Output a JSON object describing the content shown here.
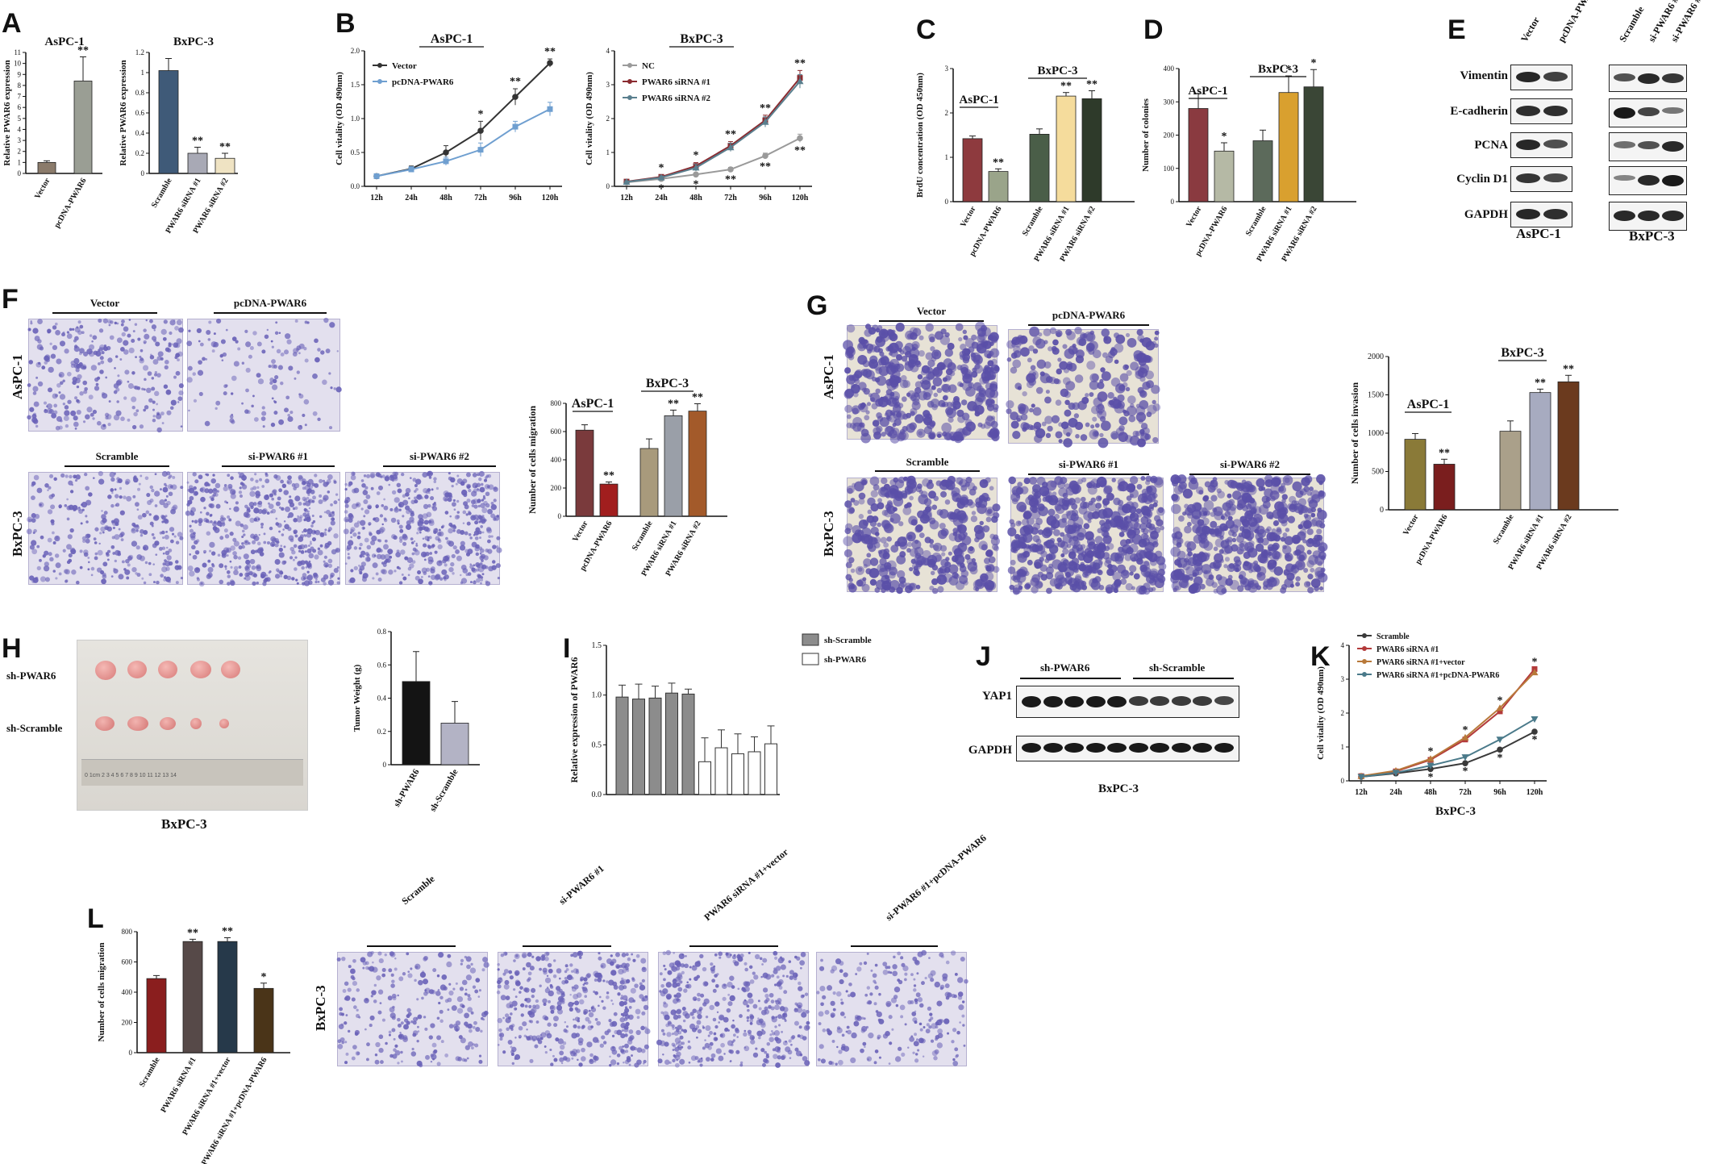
{
  "panel_letters": {
    "A": "A",
    "B": "B",
    "C": "C",
    "D": "D",
    "E": "E",
    "F": "F",
    "G": "G",
    "H": "H",
    "I": "I",
    "J": "J",
    "K": "K",
    "L": "L"
  },
  "colors": {
    "vector": "#8b7b6b",
    "pcdna": "#9a9e94",
    "scramble": "#3f5a78",
    "sirna1": "#a8a9b5",
    "sirna2": "#efe3c3",
    "c_vec": "#8e3a3e",
    "c_pc": "#9aa48a",
    "c_scr": "#4a5e48",
    "c_si1": "#f5dc9c",
    "c_si2": "#2e3a2a",
    "d_vec": "#8a3a40",
    "d_pc": "#b5b9a5",
    "d_scr": "#5c6a5b",
    "d_si1": "#d9a02f",
    "d_si2": "#3a4636",
    "f_vec": "#7a3a3c",
    "f_pc": "#a11e1e",
    "f_scr": "#a89a7c",
    "f_si1": "#9a9fa8",
    "f_si2": "#a35a2a",
    "g_vec": "#8a7a38",
    "g_pc": "#7a1e1e",
    "g_scr": "#aaa08a",
    "g_si1": "#a7abc0",
    "g_si2": "#6b3a1e",
    "stain": "#5a4fa8",
    "bg_photo": "#dcd8ea"
  },
  "texts": {
    "aspc1": "AsPC-1",
    "bxpc3": "BxPC-3",
    "a_ylabel": "Relative PWAR6 expression",
    "b_ylabel1": "Cell vitality (OD 490nm)",
    "b_ylabel2": "Cell vitality (OD 490nm)",
    "c_ylabel": "BrdU concentration (OD 450nm)",
    "d_ylabel": "Number of colonies",
    "f_ylabel": "Number of cells migration",
    "g_ylabel": "Number of cells invasion",
    "h_ylabel": "Tumor Weight (g)",
    "i_ylabel": "Relative expression of PWAR6",
    "k_ylabel": "Cell vitality (OD 490nm)",
    "l_ylabel": "Number of cells migration",
    "vector": "Vector",
    "pcdna": "pcDNA-PWAR6",
    "scramble": "Scramble",
    "nc": "NC",
    "sirna1": "PWAR6 siRNA #1",
    "sirna2": "PWAR6 siRNA #2",
    "si1": "si-PWAR6 #1",
    "si2": "si-PWAR6 #2",
    "sh_pwar6": "sh-PWAR6",
    "sh_scramble": "sh-Scramble",
    "sirna1_vector": "PWAR6 siRNA #1+vector",
    "sirna1_pcdna": "PWAR6 siRNA #1+pcDNA-PWAR6",
    "si1_pcdna": "si-PWAR6 #1+pcDNA-PWAR6",
    "sirna1_vector_l": "PWAR6 siRNA #1+vector",
    "wb_vimentin": "Vimentin",
    "wb_ecad": "E-cadherin",
    "wb_pcna": "PCNA",
    "wb_cyclin": "Cyclin D1",
    "wb_gapdh": "GAPDH",
    "yap1": "YAP1",
    "gapdh": "GAPDH",
    "ruler": "0  1cm  2  3  4  5  6  7  8  9  10  11  12  13  14"
  },
  "chart_data": [
    {
      "id": "A1",
      "type": "bar",
      "title": "AsPC-1",
      "ylabel": "Relative PWAR6 expression",
      "categories": [
        "Vector",
        "pcDNA-PWAR6"
      ],
      "values": [
        1.0,
        8.4
      ],
      "errors": [
        0.15,
        2.2
      ],
      "ylim": [
        0,
        11
      ],
      "yticks": [
        0,
        1,
        2,
        3,
        4,
        5,
        6,
        7,
        8,
        9,
        10,
        11
      ],
      "sig": [
        "",
        "**"
      ]
    },
    {
      "id": "A2",
      "type": "bar",
      "title": "BxPC-3",
      "ylabel": "Relative PWAR6 expression",
      "categories": [
        "Scramble",
        "PWAR6 siRNA #1",
        "PWAR6 siRNA #2"
      ],
      "values": [
        1.02,
        0.2,
        0.15
      ],
      "errors": [
        0.12,
        0.06,
        0.05
      ],
      "ylim": [
        0,
        1.2
      ],
      "yticks": [
        0,
        0.2,
        0.4,
        0.6,
        0.8,
        1.0,
        1.2
      ],
      "sig": [
        "",
        "**",
        "**"
      ]
    },
    {
      "id": "B1",
      "type": "line",
      "title": "AsPC-1",
      "ylabel": "Cell vitality (OD 490nm)",
      "x": [
        "12h",
        "24h",
        "48h",
        "72h",
        "96h",
        "120h"
      ],
      "ylim": [
        0,
        2.0
      ],
      "yticks": [
        0,
        0.5,
        1.0,
        1.5,
        2.0
      ],
      "series": [
        {
          "name": "Vector",
          "values": [
            0.15,
            0.26,
            0.5,
            0.82,
            1.32,
            1.82
          ],
          "errors": [
            0.03,
            0.04,
            0.1,
            0.14,
            0.12,
            0.06
          ]
        },
        {
          "name": "pcDNA-PWAR6",
          "values": [
            0.15,
            0.25,
            0.37,
            0.54,
            0.88,
            1.14
          ],
          "errors": [
            0.03,
            0.04,
            0.06,
            0.1,
            0.08,
            0.1
          ]
        }
      ],
      "sig": [
        "",
        "",
        "",
        "*",
        "**",
        "**"
      ]
    },
    {
      "id": "B2",
      "type": "line",
      "title": "BxPC-3",
      "ylabel": "Cell vitality (OD 490nm)",
      "x": [
        "12h",
        "24h",
        "48h",
        "72h",
        "96h",
        "120h"
      ],
      "ylim": [
        0,
        4
      ],
      "yticks": [
        0,
        1,
        2,
        3,
        4
      ],
      "series": [
        {
          "name": "NC",
          "values": [
            0.12,
            0.22,
            0.35,
            0.5,
            0.9,
            1.42
          ],
          "errors": [
            0.03,
            0.04,
            0.05,
            0.06,
            0.08,
            0.12
          ]
        },
        {
          "name": "PWAR6 siRNA #1",
          "values": [
            0.14,
            0.28,
            0.6,
            1.2,
            1.95,
            3.2
          ],
          "errors": [
            0.03,
            0.05,
            0.1,
            0.12,
            0.15,
            0.22
          ]
        },
        {
          "name": "PWAR6 siRNA #2",
          "values": [
            0.13,
            0.26,
            0.55,
            1.15,
            1.9,
            3.1
          ],
          "errors": [
            0.03,
            0.05,
            0.1,
            0.12,
            0.15,
            0.2
          ]
        }
      ],
      "sig": [
        "",
        "*",
        "*",
        "**",
        "**",
        "**"
      ]
    },
    {
      "id": "C",
      "type": "bar",
      "ylabel": "BrdU concentration (OD 450nm)",
      "categories": [
        "Vector",
        "pcDNA-PWAR6",
        "Scramble",
        "PWAR6 siRNA #1",
        "PWAR6 siRNA #2"
      ],
      "values": [
        1.42,
        0.68,
        1.52,
        2.38,
        2.32
      ],
      "errors": [
        0.06,
        0.06,
        0.12,
        0.08,
        0.18
      ],
      "ylim": [
        0,
        3
      ],
      "yticks": [
        0,
        1,
        2,
        3
      ],
      "sig": [
        "",
        "**",
        "",
        "**",
        "**"
      ]
    },
    {
      "id": "D",
      "type": "bar",
      "ylabel": "Number of colonies",
      "categories": [
        "Vector",
        "pcDNA-PWAR6",
        "Scramble",
        "PWAR6 siRNA #1",
        "PWAR6 siRNA #2"
      ],
      "values": [
        280,
        152,
        183,
        328,
        345
      ],
      "errors": [
        45,
        25,
        32,
        50,
        52
      ],
      "ylim": [
        0,
        400
      ],
      "yticks": [
        0,
        100,
        200,
        300,
        400
      ],
      "sig": [
        "",
        "*",
        "",
        "*",
        "*"
      ]
    },
    {
      "id": "F",
      "type": "bar",
      "ylabel": "Number of cells migration",
      "categories": [
        "Vector",
        "pcDNA-PWAR6",
        "Scramble",
        "PWAR6 siRNA #1",
        "PWAR6 siRNA #2"
      ],
      "values": [
        610,
        228,
        480,
        712,
        745
      ],
      "errors": [
        38,
        15,
        68,
        40,
        52
      ],
      "ylim": [
        0,
        800
      ],
      "yticks": [
        0,
        200,
        400,
        600,
        800
      ],
      "sig": [
        "",
        "**",
        "",
        "**",
        "**"
      ]
    },
    {
      "id": "G",
      "type": "bar",
      "ylabel": "Number of cells invasion",
      "categories": [
        "Vector",
        "pcDNA-PWAR6",
        "Scramble",
        "PWAR6 siRNA #1",
        "PWAR6 siRNA #2"
      ],
      "values": [
        920,
        595,
        1025,
        1530,
        1670
      ],
      "errors": [
        75,
        65,
        135,
        45,
        85
      ],
      "ylim": [
        0,
        2000
      ],
      "yticks": [
        0,
        500,
        1000,
        1500,
        2000
      ],
      "sig": [
        "",
        "**",
        "",
        "**",
        "**"
      ]
    },
    {
      "id": "H",
      "type": "bar",
      "ylabel": "Tumor Weight (g)",
      "categories": [
        "sh-PWAR6",
        "sh-Scramble"
      ],
      "values": [
        0.5,
        0.25
      ],
      "errors": [
        0.18,
        0.13
      ],
      "ylim": [
        0,
        0.8
      ],
      "yticks": [
        0.0,
        0.2,
        0.4,
        0.6,
        0.8
      ]
    },
    {
      "id": "I",
      "type": "bar",
      "ylabel": "Relative expression of PWAR6",
      "series": [
        {
          "name": "sh-Scramble",
          "values": [
            0.98,
            0.96,
            0.97,
            1.02,
            1.01
          ]
        },
        {
          "name": "sh-PWAR6",
          "values": [
            0.33,
            0.47,
            0.41,
            0.43,
            0.51
          ]
        }
      ],
      "errors": [
        0.12,
        0.15,
        0.12,
        0.1,
        0.05,
        0.24,
        0.18,
        0.2,
        0.15,
        0.18
      ],
      "ylim": [
        0,
        1.5
      ],
      "yticks": [
        0.0,
        0.5,
        1.0,
        1.5
      ]
    },
    {
      "id": "K",
      "type": "line",
      "ylabel": "Cell vitality (OD 490nm)",
      "x": [
        "12h",
        "24h",
        "48h",
        "72h",
        "96h",
        "120h"
      ],
      "ylim": [
        0,
        4
      ],
      "yticks": [
        0,
        1,
        2,
        3,
        4
      ],
      "series": [
        {
          "name": "Scramble",
          "values": [
            0.12,
            0.22,
            0.35,
            0.52,
            0.92,
            1.45
          ]
        },
        {
          "name": "PWAR6 siRNA #1",
          "values": [
            0.14,
            0.28,
            0.62,
            1.22,
            2.05,
            3.3
          ]
        },
        {
          "name": "PWAR6 siRNA #1+vector",
          "values": [
            0.14,
            0.3,
            0.65,
            1.28,
            2.15,
            3.2
          ]
        },
        {
          "name": "PWAR6 siRNA #1+pcDNA-PWAR6",
          "values": [
            0.12,
            0.24,
            0.45,
            0.7,
            1.22,
            1.82
          ]
        }
      ],
      "sig": [
        "",
        "",
        "*",
        "*",
        "*",
        "*"
      ]
    },
    {
      "id": "L",
      "type": "bar",
      "ylabel": "Number of cells migration",
      "categories": [
        "Scramble",
        "PWAR6 siRNA #1",
        "PWAR6 siRNA #1+vector",
        "PWAR6 siRNA #1+pcDNA-PWAR6"
      ],
      "values": [
        490,
        735,
        735,
        425
      ],
      "errors": [
        20,
        15,
        25,
        35
      ],
      "ylim": [
        0,
        800
      ],
      "yticks": [
        0,
        200,
        400,
        600,
        800
      ],
      "sig": [
        "",
        "**",
        "**",
        "*"
      ]
    }
  ]
}
